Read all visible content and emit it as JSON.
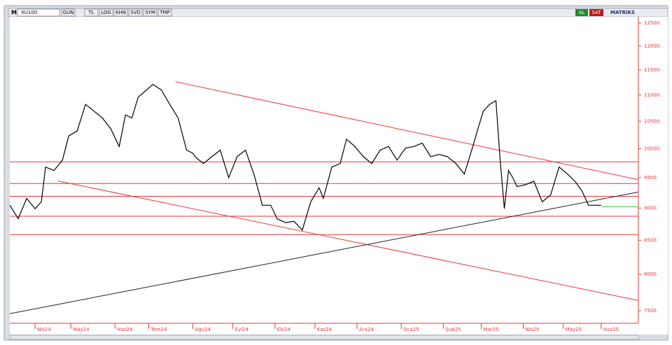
{
  "toolbar": {
    "logo": "M",
    "symbol": "XU100",
    "buttons": [
      "GUN",
      "TL",
      "LOG",
      "KHN",
      "SVD",
      "SYM",
      "TMP"
    ],
    "buy": "AL",
    "sell": "SAT",
    "brand": "MATRiKS"
  },
  "chart_data": {
    "type": "line",
    "log_scale": true,
    "x": [
      0,
      4,
      8,
      12,
      15,
      17,
      21,
      25,
      28,
      32,
      36,
      40,
      44,
      48,
      52,
      55,
      58,
      61,
      65,
      68,
      72,
      76,
      80,
      84,
      87,
      88,
      92,
      96,
      100,
      104,
      108,
      112,
      116,
      120,
      124,
      127,
      131,
      135,
      139,
      143,
      147,
      149,
      153,
      157,
      160,
      164,
      168,
      172,
      176,
      180,
      184,
      188,
      192,
      196,
      200,
      204,
      208,
      212,
      216,
      220,
      223,
      225,
      228,
      231,
      233,
      235,
      237,
      239,
      241,
      245,
      249,
      253,
      257,
      261,
      265,
      269,
      272,
      275,
      277,
      281
    ],
    "series": [
      {
        "name": "XU100",
        "color": "#000000",
        "values": [
          9045,
          8830,
          9155,
          8990,
          9100,
          9680,
          9620,
          9800,
          10230,
          10320,
          10820,
          10690,
          10560,
          10360,
          10040,
          10620,
          10560,
          10960,
          11100,
          11210,
          11100,
          10820,
          10560,
          9975,
          9920,
          9860,
          9740,
          9860,
          9975,
          9500,
          9860,
          9975,
          9560,
          9045,
          9045,
          8830,
          8770,
          8790,
          8655,
          9100,
          9330,
          9155,
          9680,
          9740,
          10170,
          10040,
          9860,
          9740,
          9975,
          10040,
          9800,
          10010,
          10040,
          10100,
          9860,
          9900,
          9860,
          9740,
          9560,
          10040,
          10430,
          10690,
          10820,
          10890,
          9800,
          8990,
          9620,
          9500,
          9350,
          9380,
          9440,
          9100,
          9210,
          9680,
          9560,
          9420,
          9270,
          9045,
          9045,
          9045
        ]
      }
    ],
    "xlim": [
      0,
      298.7
    ],
    "ylim": [
      7334,
      12640
    ],
    "yticks": [
      {
        "value": 7500,
        "label": "7500."
      },
      {
        "value": 8000,
        "label": "8000."
      },
      {
        "value": 8500,
        "label": "8500."
      },
      {
        "value": 9000,
        "label": "9000."
      },
      {
        "value": 9500,
        "label": "9500."
      },
      {
        "value": 10000,
        "label": "10000."
      },
      {
        "value": 10500,
        "label": "10500."
      },
      {
        "value": 11000,
        "label": "11000."
      },
      {
        "value": 11500,
        "label": "11500."
      },
      {
        "value": 12000,
        "label": "12000."
      },
      {
        "value": 12500,
        "label": "12500."
      }
    ],
    "xticks": [
      {
        "value": 12,
        "label": "Nis24"
      },
      {
        "value": 29,
        "label": "May24"
      },
      {
        "value": 50,
        "label": "Haz24"
      },
      {
        "value": 66,
        "label": "Tem24"
      },
      {
        "value": 87,
        "label": "Ağu24"
      },
      {
        "value": 106,
        "label": "Eyl24"
      },
      {
        "value": 126,
        "label": "Eki24"
      },
      {
        "value": 145,
        "label": "Kas24"
      },
      {
        "value": 165,
        "label": "Ara24"
      },
      {
        "value": 186,
        "label": "Oca25"
      },
      {
        "value": 206,
        "label": "Şub25"
      },
      {
        "value": 224,
        "label": "Mar25"
      },
      {
        "value": 244,
        "label": "Nis25"
      },
      {
        "value": 263,
        "label": "May25"
      },
      {
        "value": 281,
        "label": "Haz25"
      }
    ],
    "hlines": {
      "color": "#e8363a",
      "values": [
        9770,
        9400,
        9190,
        8870,
        8585
      ]
    },
    "trendlines": [
      {
        "color": "#e8363a",
        "x": [
          78.7,
          298.7
        ],
        "y": [
          11264,
          9465
        ]
      },
      {
        "color": "#e8363a",
        "x": [
          22.7,
          298.7
        ],
        "y": [
          9445,
          7637
        ]
      },
      {
        "color": "#222222",
        "x": [
          0,
          298.7
        ],
        "y": [
          7460,
          9260
        ]
      },
      {
        "color": "#33cc33",
        "x": [
          281.3,
          298.7
        ],
        "y": [
          9020,
          9020
        ]
      }
    ],
    "axis_color": "#e8363a"
  }
}
